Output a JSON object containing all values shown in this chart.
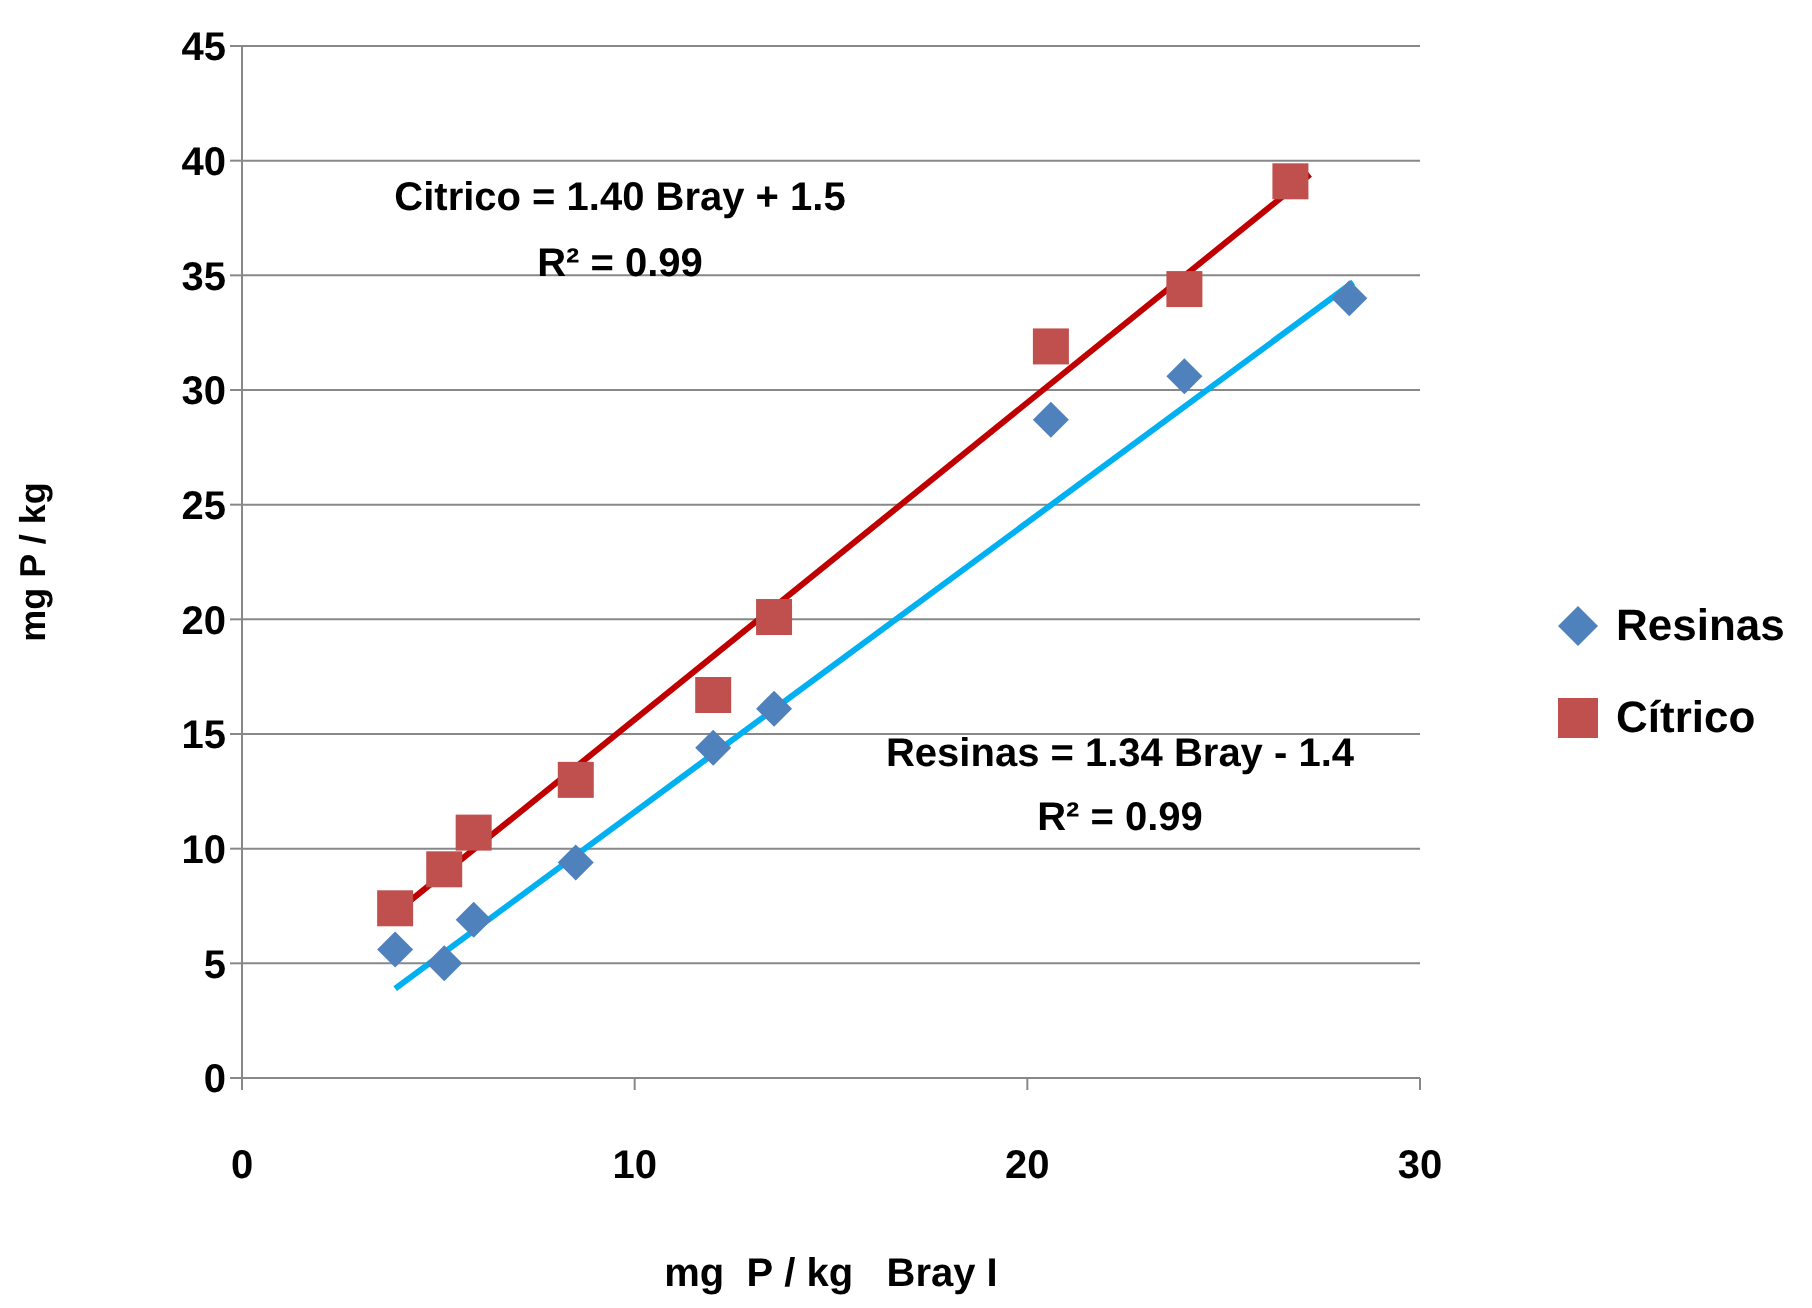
{
  "chart_data": {
    "type": "scatter",
    "xlabel": "mg  P / kg   Bray I",
    "ylabel": "mg P / kg",
    "xlim": [
      0,
      30
    ],
    "xticks": [
      0,
      10,
      20,
      30
    ],
    "ylim": [
      0,
      45
    ],
    "yticks": [
      0,
      5,
      10,
      15,
      20,
      25,
      30,
      35,
      40,
      45
    ],
    "grid": "y",
    "legend": "right",
    "series": [
      {
        "name": "Resinas",
        "marker": "diamond",
        "color": "#4f81bd",
        "x": [
          3.9,
          5.15,
          5.9,
          8.5,
          12.0,
          13.55,
          20.6,
          24.0,
          28.2
        ],
        "values": [
          5.6,
          5.0,
          6.9,
          9.4,
          14.4,
          16.1,
          28.7,
          30.6,
          34.0
        ]
      },
      {
        "name": "Cítrico",
        "marker": "square",
        "color": "#c0504d",
        "x": [
          3.9,
          5.15,
          5.9,
          8.5,
          12.0,
          13.55,
          20.6,
          24.0,
          26.7
        ],
        "values": [
          7.4,
          9.1,
          10.7,
          13.0,
          16.7,
          20.1,
          31.9,
          34.4,
          39.1
        ]
      },
      {
        "type": "line",
        "color": "#00b0f0",
        "x": [
          3.9,
          28.3
        ],
        "values": [
          3.9,
          34.7
        ]
      },
      {
        "type": "line",
        "color": "#c00000",
        "x": [
          3.9,
          27.2
        ],
        "values": [
          7.2,
          39.4
        ]
      }
    ],
    "annotations": [
      "Citrico = 1.40 Bray + 1.5",
      "R² = 0.99",
      "Resinas = 1.34 Bray - 1.4",
      "R² = 0.99"
    ]
  }
}
